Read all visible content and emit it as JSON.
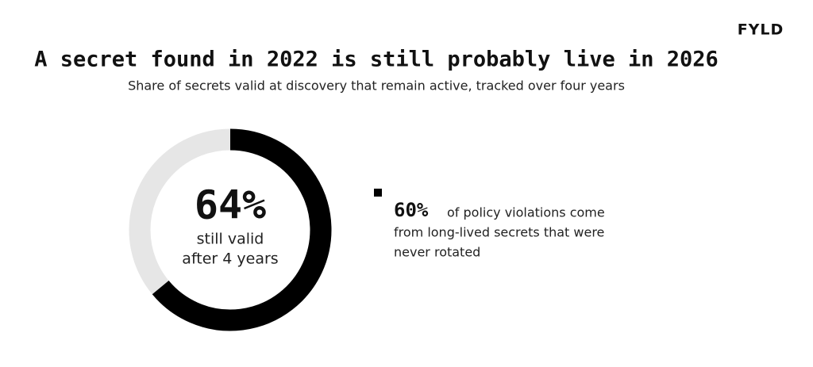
{
  "chart_data": {
    "type": "donut",
    "logo": "FYLD",
    "title": "A secret found in 2022 is still probably live in 2026",
    "subtitle": "Share of secrets valid at discovery that remain active, tracked over four years",
    "values": [
      64
    ],
    "value_labels": [
      "64%"
    ],
    "color": "#000000",
    "track_color": "#e6e6e6",
    "center_label": [
      "still valid",
      "after 4 years"
    ],
    "annotation": {
      "highlight": "60%",
      "lines": [
        "of policy violations come",
        "from long-lived secrets that were",
        "never rotated"
      ]
    }
  }
}
